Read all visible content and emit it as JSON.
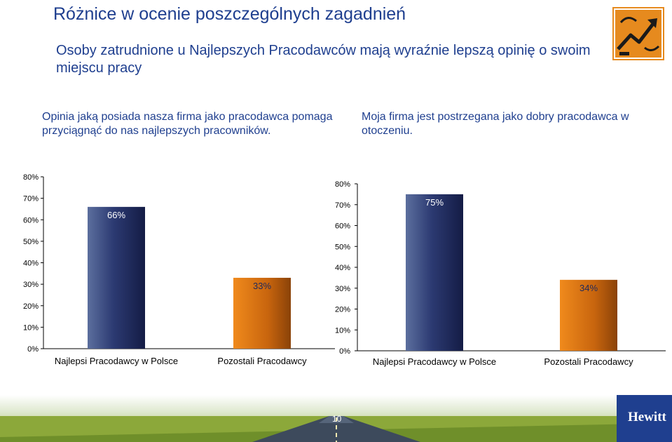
{
  "page": {
    "title": "Różnice w ocenie poszczególnych zagadnień",
    "subtitle": "Osoby zatrudnione u Najlepszych Pracodawców mają wyraźnie lepszą opinię o swoim miejscu pracy",
    "page_number": "10",
    "brand": "Hewitt",
    "logo_icon": "chart-arrow-icon",
    "colors": {
      "title": "#1f3f8f",
      "bar_best": "#1e2a60",
      "bar_other": "#d9700f",
      "logo": "#e68a1e"
    }
  },
  "chart_data": [
    {
      "type": "bar",
      "title": "Opinia jaką posiada nasza firma jako pracodawca pomaga przyciągnąć do nas najlepszych pracowników.",
      "categories": [
        "Najlepsi Pracodawcy w Polsce",
        "Pozostali Pracodawcy"
      ],
      "values": [
        66,
        33
      ],
      "data_labels": [
        "66%",
        "33%"
      ],
      "y_ticks": [
        "0%",
        "10%",
        "20%",
        "30%",
        "40%",
        "50%",
        "60%",
        "70%",
        "80%"
      ],
      "ylim": [
        0,
        80
      ],
      "xlabel": "",
      "ylabel": "",
      "grid": false
    },
    {
      "type": "bar",
      "title": "Moja firma jest postrzegana jako dobry pracodawca w otoczeniu.",
      "categories": [
        "Najlepsi Pracodawcy w Polsce",
        "Pozostali Pracodawcy"
      ],
      "values": [
        75,
        34
      ],
      "data_labels": [
        "75%",
        "34%"
      ],
      "y_ticks": [
        "0%",
        "10%",
        "20%",
        "30%",
        "40%",
        "50%",
        "60%",
        "70%",
        "80%"
      ],
      "ylim": [
        0,
        80
      ],
      "xlabel": "",
      "ylabel": "",
      "grid": false
    }
  ]
}
